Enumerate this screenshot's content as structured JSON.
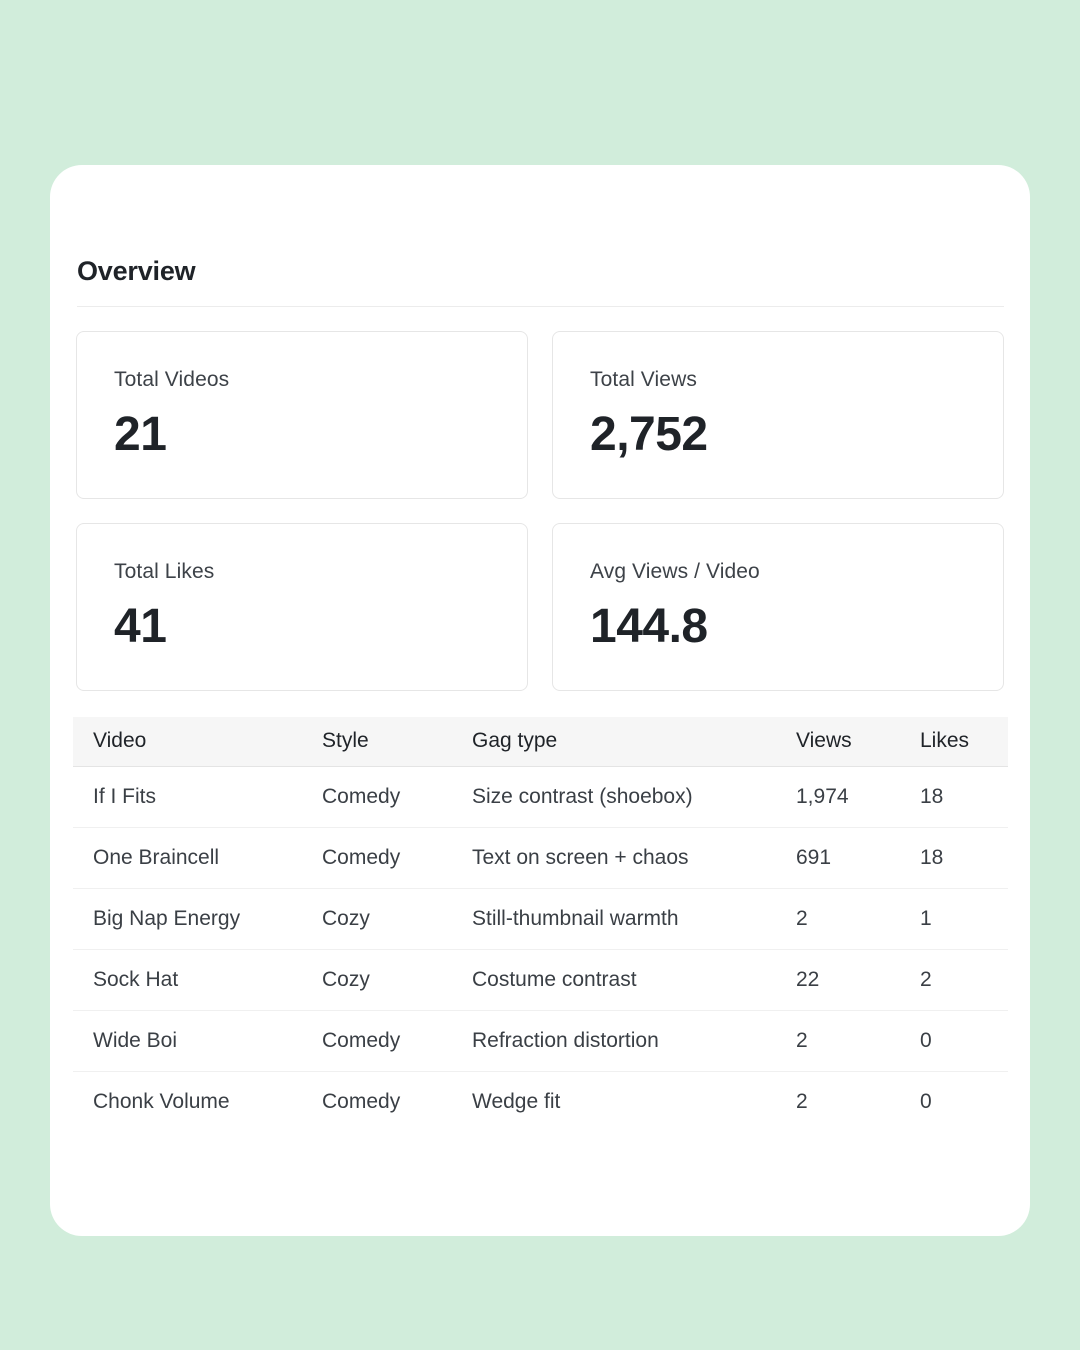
{
  "overview": {
    "title": "Overview",
    "stats": [
      {
        "label": "Total Videos",
        "value": "21"
      },
      {
        "label": "Total Views",
        "value": "2,752"
      },
      {
        "label": "Total Likes",
        "value": "41"
      },
      {
        "label": "Avg Views / Video",
        "value": "144.8"
      }
    ]
  },
  "table": {
    "columns": [
      "Video",
      "Style",
      "Gag type",
      "Views",
      "Likes"
    ],
    "rows": [
      [
        "If I Fits",
        "Comedy",
        "Size contrast (shoebox)",
        "1,974",
        "18"
      ],
      [
        "One Braincell",
        "Comedy",
        "Text on screen + chaos",
        "691",
        "18"
      ],
      [
        "Big Nap Energy",
        "Cozy",
        "Still-thumbnail warmth",
        "2",
        "1"
      ],
      [
        "Sock Hat",
        "Cozy",
        "Costume contrast",
        "22",
        "2"
      ],
      [
        "Wide Boi",
        "Comedy",
        "Refraction distortion",
        "2",
        "0"
      ],
      [
        "Chonk Volume",
        "Comedy",
        "Wedge fit",
        "2",
        "0"
      ]
    ]
  }
}
